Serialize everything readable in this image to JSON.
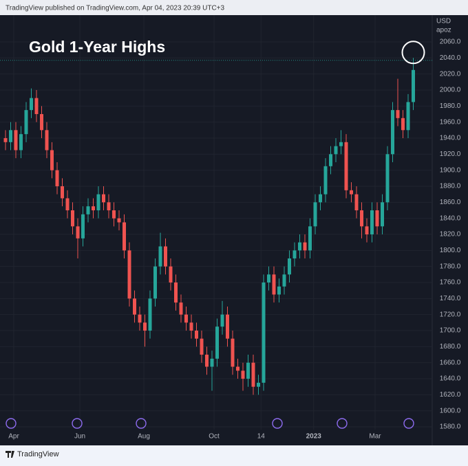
{
  "header": "TradingView published on TradingView.com, Apr 04, 2023 20:39 UTC+3",
  "footer": "TradingView",
  "chart_data": {
    "type": "candlestick",
    "title": "Gold 1-Year Highs",
    "currency": "USD",
    "axis_note": "apoz",
    "up_color": "#26a69a",
    "down_color": "#ef5350",
    "open": [
      1940,
      1935,
      1950,
      1925,
      1945,
      1975,
      1990,
      1970,
      1950,
      1925,
      1900,
      1880,
      1865,
      1850,
      1830,
      1815,
      1845,
      1855,
      1850,
      1870,
      1860,
      1850,
      1840,
      1835,
      1800,
      1740,
      1720,
      1710,
      1700,
      1740,
      1780,
      1805,
      1780,
      1760,
      1735,
      1720,
      1710,
      1700,
      1690,
      1670,
      1655,
      1665,
      1705,
      1720,
      1690,
      1655,
      1650,
      1640,
      1660,
      1630,
      1635,
      1760,
      1770,
      1745,
      1755,
      1770,
      1790,
      1800,
      1810,
      1800,
      1830,
      1860,
      1870,
      1905,
      1920,
      1930,
      1935,
      1875,
      1870,
      1850,
      1830,
      1820,
      1850,
      1830,
      1860,
      1920,
      1975,
      1965,
      1950,
      1985
    ],
    "high": [
      1950,
      1960,
      1960,
      1955,
      1985,
      2002,
      2000,
      1980,
      1960,
      1935,
      1910,
      1890,
      1875,
      1860,
      1840,
      1855,
      1865,
      1865,
      1880,
      1880,
      1870,
      1860,
      1850,
      1845,
      1810,
      1750,
      1730,
      1720,
      1750,
      1790,
      1822,
      1815,
      1790,
      1770,
      1745,
      1730,
      1720,
      1710,
      1700,
      1680,
      1675,
      1715,
      1737,
      1730,
      1700,
      1665,
      1660,
      1670,
      1670,
      1645,
      1770,
      1780,
      1780,
      1765,
      1780,
      1800,
      1810,
      1820,
      1820,
      1840,
      1870,
      1880,
      1915,
      1930,
      1940,
      1950,
      1945,
      1885,
      1880,
      1860,
      1840,
      1860,
      1860,
      1870,
      1930,
      1985,
      2014,
      1975,
      1995,
      2040
    ],
    "low": [
      1925,
      1925,
      1915,
      1915,
      1935,
      1965,
      1960,
      1940,
      1915,
      1890,
      1870,
      1855,
      1840,
      1820,
      1790,
      1805,
      1835,
      1840,
      1840,
      1850,
      1840,
      1830,
      1825,
      1790,
      1730,
      1710,
      1700,
      1680,
      1690,
      1730,
      1770,
      1770,
      1750,
      1725,
      1710,
      1700,
      1690,
      1680,
      1660,
      1645,
      1625,
      1655,
      1695,
      1680,
      1645,
      1640,
      1625,
      1630,
      1620,
      1620,
      1625,
      1750,
      1735,
      1735,
      1745,
      1760,
      1780,
      1790,
      1790,
      1790,
      1820,
      1850,
      1860,
      1895,
      1910,
      1920,
      1865,
      1860,
      1840,
      1815,
      1810,
      1810,
      1820,
      1820,
      1850,
      1910,
      1955,
      1940,
      1940,
      1975
    ],
    "close": [
      1935,
      1950,
      1925,
      1945,
      1975,
      1990,
      1970,
      1950,
      1925,
      1900,
      1880,
      1865,
      1850,
      1830,
      1815,
      1845,
      1855,
      1850,
      1870,
      1860,
      1850,
      1840,
      1835,
      1800,
      1740,
      1720,
      1710,
      1700,
      1740,
      1780,
      1805,
      1780,
      1760,
      1735,
      1720,
      1710,
      1700,
      1690,
      1670,
      1655,
      1665,
      1705,
      1720,
      1690,
      1655,
      1650,
      1640,
      1660,
      1630,
      1635,
      1760,
      1770,
      1745,
      1755,
      1770,
      1790,
      1800,
      1810,
      1800,
      1830,
      1860,
      1870,
      1905,
      1920,
      1930,
      1935,
      1875,
      1870,
      1850,
      1830,
      1820,
      1850,
      1830,
      1860,
      1920,
      1975,
      1965,
      1950,
      1985,
      2025
    ],
    "price_line": 2037,
    "xticks": [
      {
        "value": 1.6,
        "label": "Apr"
      },
      {
        "value": 14.4,
        "label": "Jun"
      },
      {
        "value": 26.8,
        "label": "Aug"
      },
      {
        "value": 40.4,
        "label": "Oct"
      },
      {
        "value": 49.5,
        "label": "14"
      },
      {
        "value": 59.7,
        "label": "2023"
      },
      {
        "value": 71.6,
        "label": "Mar"
      }
    ],
    "ylim": [
      1576.6,
      2093.4
    ],
    "yticks": [
      {
        "value": 1580,
        "label": "1580.0"
      },
      {
        "value": 1600,
        "label": "1600.0"
      },
      {
        "value": 1620,
        "label": "1620.0"
      },
      {
        "value": 1640,
        "label": "1640.0"
      },
      {
        "value": 1660,
        "label": "1660.0"
      },
      {
        "value": 1680,
        "label": "1680.0"
      },
      {
        "value": 1700,
        "label": "1700.0"
      },
      {
        "value": 1720,
        "label": "1720.0"
      },
      {
        "value": 1740,
        "label": "1740.0"
      },
      {
        "value": 1760,
        "label": "1760.0"
      },
      {
        "value": 1780,
        "label": "1780.0"
      },
      {
        "value": 1800,
        "label": "1800.0"
      },
      {
        "value": 1820,
        "label": "1820.0"
      },
      {
        "value": 1840,
        "label": "1840.0"
      },
      {
        "value": 1860,
        "label": "1860.0"
      },
      {
        "value": 1880,
        "label": "1880.0"
      },
      {
        "value": 1900,
        "label": "1900.0"
      },
      {
        "value": 1920,
        "label": "1920.0"
      },
      {
        "value": 1940,
        "label": "1940.0"
      },
      {
        "value": 1960,
        "label": "1960.0"
      },
      {
        "value": 1980,
        "label": "1980.0"
      },
      {
        "value": 2000,
        "label": "2000.0"
      },
      {
        "value": 2020,
        "label": "2020.0"
      },
      {
        "value": 2040,
        "label": "2040.0"
      },
      {
        "value": 2060,
        "label": "2060.0"
      }
    ],
    "grid": true
  }
}
